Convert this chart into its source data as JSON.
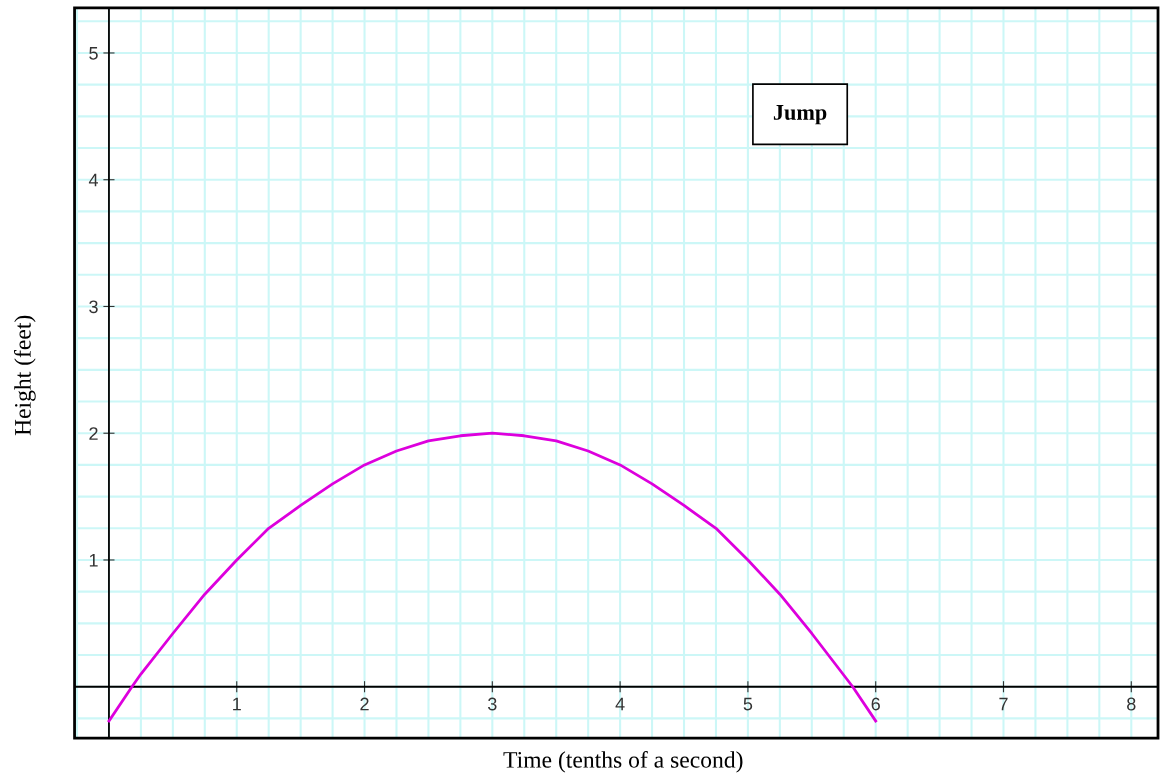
{
  "chart_data": {
    "type": "line",
    "title": "Jump",
    "xlabel": "Time (tenths of a second)",
    "ylabel": "Height (feet)",
    "x": [
      0,
      0.18,
      0.25,
      0.5,
      0.75,
      1,
      1.25,
      1.5,
      1.75,
      2,
      2.25,
      2.5,
      2.75,
      3,
      3.25,
      3.5,
      3.75,
      4,
      4.25,
      4.5,
      4.75,
      5,
      5.25,
      5.5,
      5.82,
      6
    ],
    "series": [
      {
        "color": "#dd00dd",
        "values": [
          -0.27,
          0,
          0.1,
          0.42,
          0.73,
          1.0,
          1.25,
          1.43,
          1.6,
          1.75,
          1.86,
          1.94,
          1.98,
          2.0,
          1.98,
          1.94,
          1.86,
          1.75,
          1.6,
          1.43,
          1.25,
          1.0,
          0.73,
          0.42,
          0,
          -0.27
        ]
      }
    ],
    "xlim": [
      -0.26,
      8.2
    ],
    "ylim": [
      -0.4,
      5.35
    ],
    "xticks": [
      1,
      2,
      3,
      4,
      5,
      6,
      7,
      8
    ],
    "yticks": [
      1,
      2,
      3,
      4,
      5
    ],
    "grid": true,
    "marker": "none",
    "line_style": "solid"
  }
}
